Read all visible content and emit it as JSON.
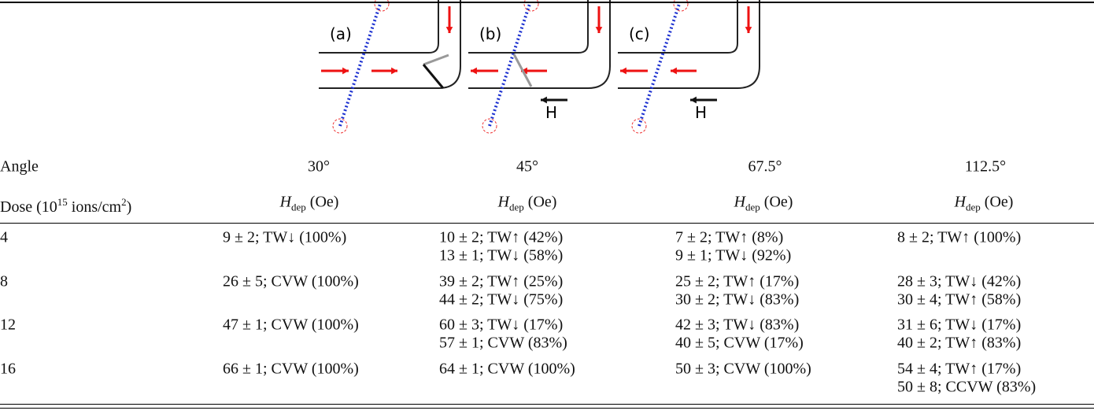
{
  "figure": {
    "panels": [
      {
        "label": "(a)"
      },
      {
        "label": "(b)",
        "field": "H"
      },
      {
        "label": "(c)",
        "field": "H"
      }
    ]
  },
  "table": {
    "header": {
      "angle_label": "Angle",
      "angles": [
        "30°",
        "45°",
        "67.5°",
        "112.5°"
      ],
      "dose_label": [
        "Dose (10",
        "15",
        " ions/cm",
        "2",
        ")"
      ],
      "field_label": [
        "H",
        "dep",
        " (Oe)"
      ]
    },
    "rows": [
      {
        "dose": "4",
        "cells": [
          [
            "9 ± 2; TW↓ (100%)"
          ],
          [
            "10 ± 2; TW↑ (42%)",
            "13 ± 1; TW↓ (58%)"
          ],
          [
            "7 ± 2; TW↑ (8%)",
            "9 ± 1; TW↓ (92%)"
          ],
          [
            "8 ± 2; TW↑ (100%)"
          ]
        ]
      },
      {
        "dose": "8",
        "cells": [
          [
            "26 ± 5; CVW (100%)"
          ],
          [
            "39 ± 2; TW↑ (25%)",
            "44 ± 2; TW↓ (75%)"
          ],
          [
            "25 ± 2; TW↑ (17%)",
            "30 ± 2; TW↓ (83%)"
          ],
          [
            "28 ± 3; TW↓ (42%)",
            "30 ± 4; TW↑ (58%)"
          ]
        ]
      },
      {
        "dose": "12",
        "cells": [
          [
            "47 ± 1; CVW (100%)"
          ],
          [
            "60 ± 3; TW↓ (17%)",
            "57 ± 1; CVW (83%)"
          ],
          [
            "42 ± 3; TW↓ (83%)",
            "40 ± 5; CVW (17%)"
          ],
          [
            "31 ± 6; TW↓ (17%)",
            "40 ± 2; TW↑ (83%)"
          ]
        ]
      },
      {
        "dose": "16",
        "cells": [
          [
            "66 ± 1; CVW (100%)"
          ],
          [
            "64 ± 1; CVW (100%)"
          ],
          [
            "50 ± 3; CVW (100%)"
          ],
          [
            "54 ± 4; TW↑ (17%)",
            "50 ± 8; CCVW (83%)"
          ]
        ]
      }
    ]
  }
}
